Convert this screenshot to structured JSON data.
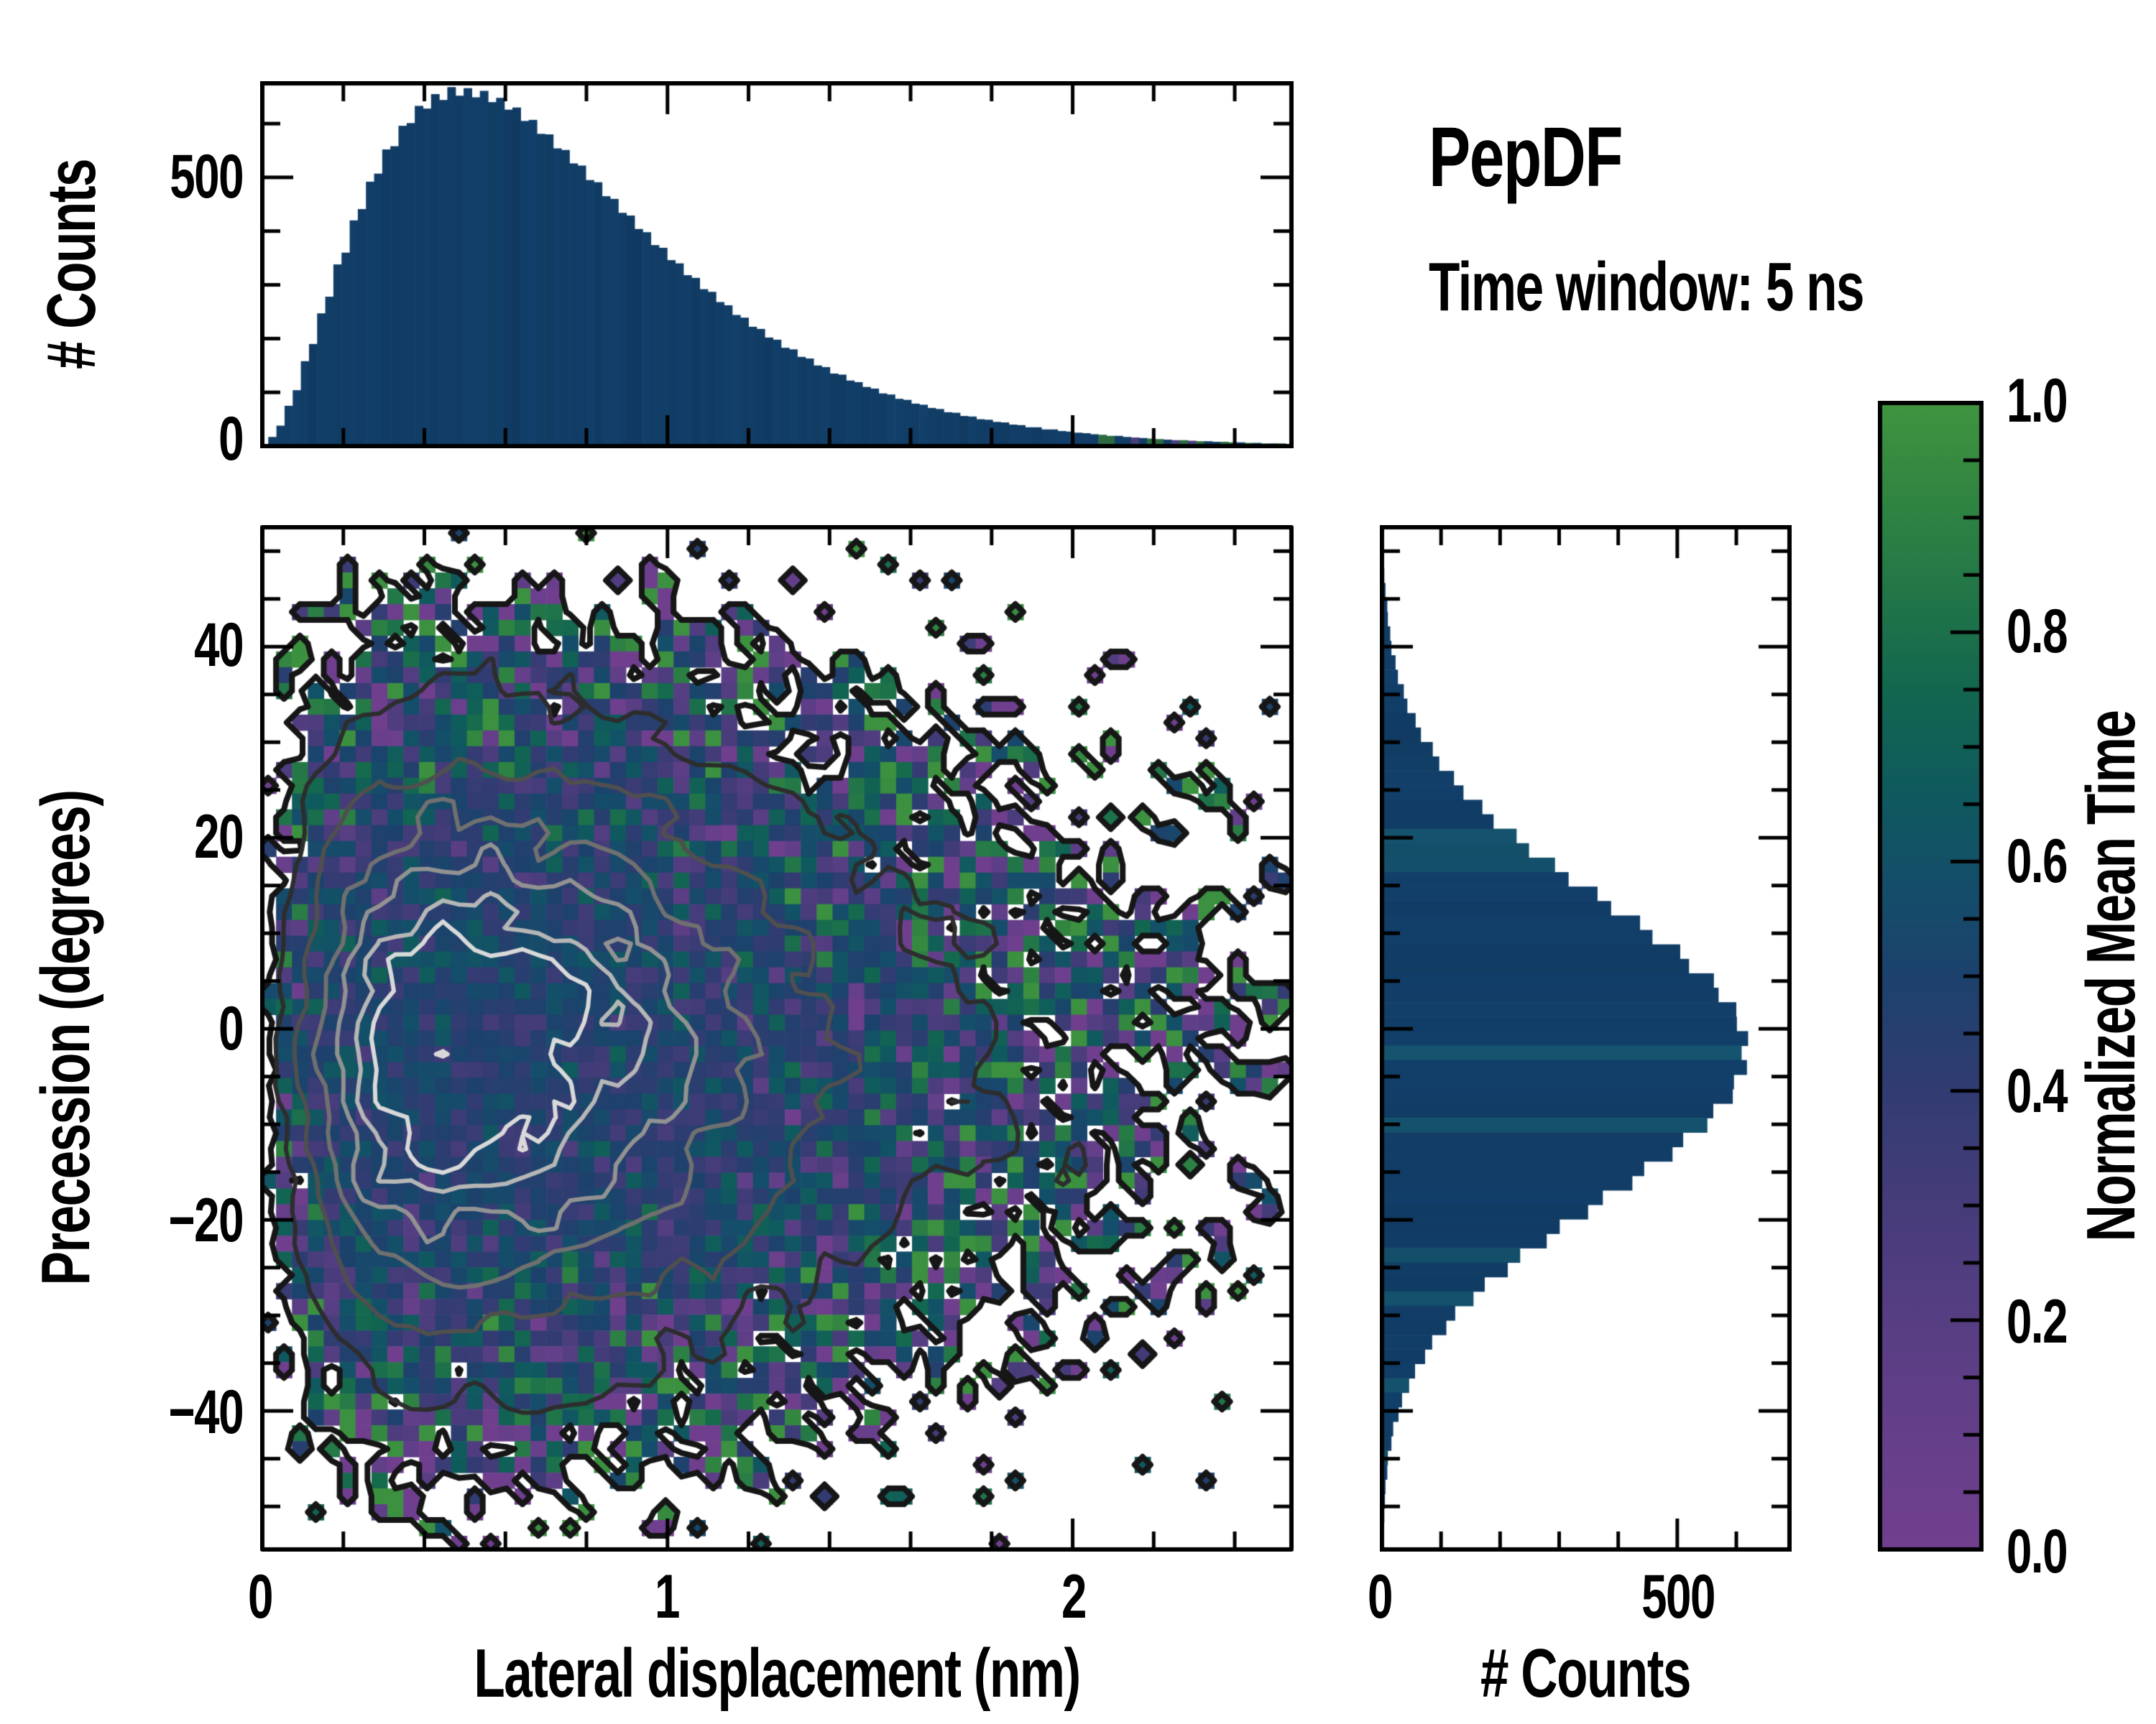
{
  "title": {
    "text": "PepDF",
    "subtitle": "Time window: 5 ns"
  },
  "labels": {
    "top_y_axis": "# Counts",
    "main_x_axis": "Lateral displacement (nm)",
    "main_y_axis": "Precession (degrees)",
    "right_x_axis": "# Counts",
    "colorbar": "Normalized Mean Time"
  },
  "axes": {
    "top": {
      "y_ticks": [
        "500",
        "0"
      ],
      "ylim": [
        0,
        675
      ],
      "y_major": [
        500,
        0
      ],
      "y_minor": [
        100,
        200,
        300,
        400,
        600
      ]
    },
    "main": {
      "x_ticks": [
        "0",
        "1",
        "2"
      ],
      "y_ticks": [
        "40",
        "20",
        "0",
        "−20",
        "−40"
      ],
      "x_range": [
        0,
        2.54
      ],
      "y_range": [
        -54.5,
        52.5
      ],
      "x_major": [
        0,
        1,
        2
      ],
      "x_minor_step": 0.2,
      "y_major": [
        40,
        20,
        0,
        -20,
        -40
      ],
      "y_minor_step": 5
    },
    "right": {
      "x_ticks": [
        "0",
        "500"
      ],
      "xlim": [
        0,
        690
      ],
      "x_major": [
        0,
        500
      ],
      "x_minor": [
        100,
        200,
        300,
        400,
        600
      ]
    },
    "colorbar": {
      "ticks": [
        "1.0",
        "0.8",
        "0.6",
        "0.4",
        "0.2",
        "0.0"
      ],
      "values": [
        1.0,
        0.8,
        0.6,
        0.4,
        0.2,
        0.0
      ],
      "minor_step": 0.05,
      "range": [
        0,
        1
      ]
    }
  },
  "colors": {
    "background": "#ffffff",
    "axis": "#000000",
    "bar_main": "#113d66",
    "bar_teal": "#14506b",
    "bar_green": "#2c6b3f",
    "bar_purple": "#4a3f7c",
    "colormap_stops": [
      [
        0,
        "#713f8f"
      ],
      [
        0.1,
        "#653f8a"
      ],
      [
        0.2,
        "#573e83"
      ],
      [
        0.3,
        "#463c7a"
      ],
      [
        0.4,
        "#323c72"
      ],
      [
        0.5,
        "#1c426c"
      ],
      [
        0.58,
        "#144e6a"
      ],
      [
        0.66,
        "#0f5a5e"
      ],
      [
        0.75,
        "#13674f"
      ],
      [
        0.85,
        "#257947"
      ],
      [
        0.93,
        "#338740"
      ],
      [
        1,
        "#3f9540"
      ]
    ],
    "contour_outer": "#161616",
    "contour_inner": [
      "#2d2d2d",
      "#4f4f4f",
      "#707070",
      "#929292",
      "#b6b6b6",
      "#d9d9d9"
    ]
  },
  "chart_data": {
    "type": "heatmap",
    "title": "PepDF",
    "subtitle": "Time window: 5 ns",
    "top_histogram": {
      "type": "bar",
      "orientation": "vertical",
      "xlabel": "Lateral displacement (nm)",
      "ylabel": "# Counts",
      "bin_start": 0,
      "bin_width": 0.02,
      "ylim": [
        0,
        675
      ],
      "yticks": [
        0,
        500
      ],
      "values": [
        3,
        17,
        38,
        75,
        104,
        158,
        190,
        247,
        278,
        338,
        360,
        420,
        441,
        492,
        507,
        552,
        558,
        596,
        601,
        633,
        628,
        655,
        644,
        668,
        652,
        666,
        649,
        661,
        640,
        648,
        626,
        630,
        605,
        607,
        581,
        580,
        554,
        551,
        526,
        522,
        495,
        491,
        465,
        460,
        434,
        429,
        404,
        398,
        374,
        369,
        346,
        340,
        318,
        313,
        292,
        287,
        268,
        262,
        244,
        239,
        222,
        218,
        202,
        198,
        183,
        180,
        166,
        163,
        150,
        147,
        135,
        133,
        122,
        119,
        110,
        107,
        98,
        96,
        88,
        86,
        79,
        77,
        71,
        69,
        63,
        62,
        56,
        55,
        50,
        49,
        45,
        44,
        40,
        39,
        35,
        35,
        31,
        31,
        28,
        27,
        25,
        24,
        22,
        21,
        19,
        19,
        17,
        16,
        15,
        14,
        13,
        12,
        11,
        11,
        10,
        9,
        9,
        8,
        8,
        7,
        7,
        6,
        6,
        5,
        5,
        5,
        4
      ]
    },
    "right_histogram": {
      "type": "bar",
      "orientation": "horizontal",
      "xlabel": "# Counts",
      "ylabel": "Precession (degrees)",
      "bin_start": 52.5,
      "bin_height": -1.5071,
      "xlim": [
        0,
        690
      ],
      "xticks": [
        0,
        500
      ],
      "values": [
        2,
        3,
        3,
        4,
        6,
        9,
        10,
        14,
        16,
        23,
        27,
        37,
        43,
        57,
        66,
        86,
        97,
        122,
        138,
        170,
        189,
        228,
        249,
        293,
        316,
        365,
        388,
        437,
        458,
        505,
        520,
        562,
        570,
        600,
        601,
        620,
        609,
        618,
        596,
        594,
        561,
        551,
        510,
        492,
        444,
        424,
        374,
        349,
        301,
        279,
        234,
        213,
        174,
        155,
        124,
        109,
        85,
        73,
        56,
        46,
        34,
        28,
        19,
        16,
        10,
        9,
        6,
        5,
        4,
        3,
        2
      ]
    },
    "heatmap": {
      "xlabel": "Lateral displacement (nm)",
      "ylabel": "Precession (degrees)",
      "x_range": [
        0,
        2.54
      ],
      "y_range": [
        -54.5,
        52.5
      ],
      "nx": 65,
      "ny": 65,
      "peak_count": 40,
      "x_mode": 0.5,
      "y_center": -2,
      "y_sigma": 16.5,
      "value_mean": 0.48,
      "value_spread": 0.5,
      "seed": 20,
      "contour_levels_raw": [
        0.5
      ],
      "contour_levels_smooth": [
        3,
        8,
        14,
        20,
        26,
        31
      ]
    },
    "colorbar": {
      "label": "Normalized Mean Time",
      "range": [
        0,
        1
      ],
      "orientation": "vertical"
    }
  }
}
